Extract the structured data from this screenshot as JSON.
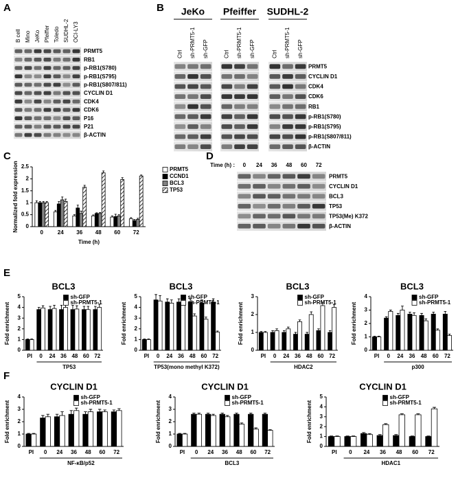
{
  "panel_labels": [
    "A",
    "B",
    "C",
    "D",
    "E",
    "F"
  ],
  "blots": {
    "A": {
      "lanes": [
        "B cell",
        "Mino",
        "JeKo",
        "Pfeiffer",
        "Toledo",
        "SUDHL-2",
        "OCI-LY3"
      ],
      "rows": [
        "PRMT5",
        "RB1",
        "p-RB1(S780)",
        "p-RB1(S795)",
        "p-RB1(S807/811)",
        "CYCLIN D1",
        "CDK4",
        "CDK6",
        "P16",
        "P21",
        "β-ACTIN"
      ]
    },
    "B": {
      "groups": [
        {
          "name": "JeKo",
          "lanes": [
            "Ctrl",
            "sh-PRMT5-1",
            "sh-GFP"
          ]
        },
        {
          "name": "Pfeiffer",
          "lanes": [
            "Ctrl",
            "sh-PRMT5-1",
            "sh-GFP"
          ]
        },
        {
          "name": "SUDHL-2",
          "lanes": [
            "Ctrl",
            "sh-PRMT5-1",
            "sh-GFP"
          ]
        }
      ],
      "rows": [
        "PRMT5",
        "CYCLIN D1",
        "CDK4",
        "CDK6",
        "RB1",
        "p-RB1(S780)",
        "p-RB1(S795)",
        "p-RB1(S807/811)",
        "β-ACTIN"
      ]
    },
    "D": {
      "time_label": "Time (h) :",
      "lanes": [
        "0",
        "24",
        "36",
        "48",
        "60",
        "72"
      ],
      "rows": [
        "PRMT5",
        "CYCLIN D1",
        "BCL3",
        "TP53",
        "TP53(Me) K372",
        "β-ACTIN"
      ]
    }
  },
  "chart_data": [
    {
      "type": "bar",
      "ylabel": "Normalized fold expression",
      "xlabel": "Time (h)",
      "legend": "right",
      "categories": [
        "0",
        "24",
        "36",
        "48",
        "60",
        "72"
      ],
      "ylim": [
        0,
        2.5
      ],
      "yticks": [
        0,
        0.5,
        1,
        1.5,
        2,
        2.5
      ],
      "series": [
        {
          "name": "PRMT5",
          "color": "#ffffff",
          "values": [
            1.0,
            0.62,
            0.45,
            0.45,
            0.4,
            0.33
          ],
          "errors": [
            0.08,
            0.06,
            0.05,
            0.04,
            0.05,
            0.05
          ]
        },
        {
          "name": "CCND1",
          "color": "#000000",
          "values": [
            1.0,
            0.95,
            0.78,
            0.55,
            0.42,
            0.25
          ],
          "errors": [
            0.05,
            0.1,
            0.12,
            0.03,
            0.1,
            0.05
          ]
        },
        {
          "name": "BCL3",
          "color": "#808080",
          "values": [
            1.0,
            1.12,
            0.55,
            0.55,
            0.45,
            0.3
          ],
          "errors": [
            0.05,
            0.12,
            0.1,
            0.04,
            0.05,
            0.05
          ]
        },
        {
          "name": "TP53",
          "color": "#ffffff",
          "pattern": "hatch",
          "values": [
            1.0,
            1.05,
            1.65,
            2.25,
            1.97,
            2.12
          ],
          "errors": [
            0.05,
            0.1,
            0.08,
            0.08,
            0.08,
            0.04
          ]
        }
      ]
    },
    {
      "type": "bar",
      "title": "BCL3",
      "ylabel": "Fold enrichment",
      "xlabel": "TP53",
      "legend": "top-right",
      "categories": [
        "PI",
        "0",
        "24",
        "36",
        "48",
        "60",
        "72"
      ],
      "ylim": [
        0,
        5
      ],
      "yticks": [
        0,
        1,
        2,
        3,
        4,
        5
      ],
      "series": [
        {
          "name": "sh-GFP",
          "color": "#000000",
          "values": [
            1.0,
            3.8,
            3.8,
            3.8,
            3.8,
            3.8,
            3.8
          ],
          "errors": [
            0.05,
            0.2,
            0.3,
            0.4,
            0.4,
            0.3,
            0.3
          ]
        },
        {
          "name": "sh-PRMT5-1",
          "color": "#ffffff",
          "values": [
            1.0,
            3.95,
            3.9,
            4.0,
            3.85,
            3.8,
            4.0
          ],
          "errors": [
            0.05,
            0.2,
            0.3,
            0.4,
            0.3,
            0.3,
            0.3
          ]
        }
      ]
    },
    {
      "type": "bar",
      "title": "BCL3",
      "ylabel": "Fold enrichment",
      "xlabel": "TP53(mono methyl K372)",
      "legend": "top-right",
      "categories": [
        "PI",
        "0",
        "24",
        "36",
        "48",
        "60",
        "72"
      ],
      "ylim": [
        0,
        5
      ],
      "yticks": [
        0,
        1,
        2,
        3,
        4,
        5
      ],
      "series": [
        {
          "name": "sh-GFP",
          "color": "#000000",
          "values": [
            1.0,
            4.7,
            4.5,
            4.5,
            4.5,
            4.4,
            4.5
          ],
          "errors": [
            0.05,
            0.5,
            0.3,
            0.3,
            0.3,
            0.3,
            0.3
          ]
        },
        {
          "name": "sh-PRMT5-1",
          "color": "#ffffff",
          "values": [
            1.0,
            4.6,
            4.4,
            4.2,
            3.2,
            2.9,
            1.7
          ],
          "errors": [
            0.05,
            0.5,
            0.3,
            0.3,
            0.2,
            0.2,
            0.1
          ]
        }
      ]
    },
    {
      "type": "bar",
      "title": "BCL3",
      "ylabel": "Fold enrichment",
      "xlabel": "HDAC2",
      "legend": "top-right",
      "categories": [
        "PI",
        "0",
        "24",
        "36",
        "48",
        "60",
        "72"
      ],
      "ylim": [
        0,
        3
      ],
      "yticks": [
        0,
        1,
        2,
        3
      ],
      "series": [
        {
          "name": "sh-GFP",
          "color": "#000000",
          "values": [
            1.0,
            1.0,
            1.0,
            0.9,
            0.9,
            1.1,
            1.0
          ],
          "errors": [
            0.05,
            0.1,
            0.1,
            0.1,
            0.1,
            0.1,
            0.1
          ]
        },
        {
          "name": "sh-PRMT5-1",
          "color": "#ffffff",
          "values": [
            1.0,
            1.1,
            1.2,
            1.6,
            2.0,
            2.5,
            2.4
          ],
          "errors": [
            0.05,
            0.1,
            0.1,
            0.1,
            0.15,
            0.15,
            0.15
          ]
        }
      ]
    },
    {
      "type": "bar",
      "title": "BCL3",
      "ylabel": "Fold enrichment",
      "xlabel": "p300",
      "legend": "top-right",
      "categories": [
        "PI",
        "0",
        "24",
        "36",
        "48",
        "60",
        "72"
      ],
      "ylim": [
        0,
        4
      ],
      "yticks": [
        0,
        1,
        2,
        3,
        4
      ],
      "series": [
        {
          "name": "sh-GFP",
          "color": "#000000",
          "values": [
            1.0,
            2.4,
            2.6,
            2.7,
            2.6,
            2.7,
            2.7
          ],
          "errors": [
            0.05,
            0.1,
            0.15,
            0.15,
            0.15,
            0.15,
            0.2
          ]
        },
        {
          "name": "sh-PRMT5-1",
          "color": "#ffffff",
          "values": [
            1.0,
            2.9,
            3.0,
            2.6,
            2.2,
            1.5,
            1.1
          ],
          "errors": [
            0.05,
            0.1,
            0.3,
            0.2,
            0.15,
            0.1,
            0.1
          ]
        }
      ]
    },
    {
      "type": "bar",
      "title": "CYCLIN D1",
      "ylabel": "Fold enrichment",
      "xlabel": "NF-κB/p52",
      "legend": "top-right",
      "categories": [
        "PI",
        "0",
        "24",
        "36",
        "48",
        "60",
        "72"
      ],
      "ylim": [
        0,
        4
      ],
      "yticks": [
        0,
        1,
        2,
        3,
        4
      ],
      "series": [
        {
          "name": "sh-GFP",
          "color": "#000000",
          "values": [
            1.0,
            2.3,
            2.4,
            2.6,
            2.6,
            2.8,
            2.8
          ],
          "errors": [
            0.05,
            0.2,
            0.2,
            0.3,
            0.2,
            0.2,
            0.15
          ]
        },
        {
          "name": "sh-PRMT5-1",
          "color": "#ffffff",
          "values": [
            1.0,
            2.4,
            2.5,
            2.9,
            2.8,
            2.8,
            2.9
          ],
          "errors": [
            0.05,
            0.2,
            0.3,
            0.2,
            0.2,
            0.15,
            0.15
          ]
        }
      ]
    },
    {
      "type": "bar",
      "title": "CYCLIN D1",
      "ylabel": "Fold enrichment",
      "xlabel": "BCL3",
      "legend": "top-right",
      "categories": [
        "PI",
        "0",
        "24",
        "36",
        "48",
        "60",
        "72"
      ],
      "ylim": [
        0,
        4
      ],
      "yticks": [
        0,
        1,
        2,
        3,
        4
      ],
      "series": [
        {
          "name": "sh-GFP",
          "color": "#000000",
          "values": [
            1.0,
            2.6,
            2.6,
            2.6,
            2.6,
            2.6,
            2.6
          ],
          "errors": [
            0.05,
            0.1,
            0.1,
            0.1,
            0.1,
            0.1,
            0.1
          ]
        },
        {
          "name": "sh-PRMT5-1",
          "color": "#ffffff",
          "values": [
            1.0,
            2.6,
            2.5,
            2.4,
            1.8,
            1.4,
            1.3
          ],
          "errors": [
            0.05,
            0.1,
            0.1,
            0.1,
            0.1,
            0.1,
            0.05
          ]
        }
      ]
    },
    {
      "type": "bar",
      "title": "CYCLIN D1",
      "ylabel": "Fold enrichment",
      "xlabel": "HDAC1",
      "legend": "top-right",
      "categories": [
        "PI",
        "0",
        "24",
        "36",
        "48",
        "60",
        "72"
      ],
      "ylim": [
        0,
        5
      ],
      "yticks": [
        0,
        1,
        2,
        3,
        4,
        5
      ],
      "series": [
        {
          "name": "sh-GFP",
          "color": "#000000",
          "values": [
            1.0,
            1.0,
            1.3,
            1.1,
            1.1,
            1.0,
            1.0
          ],
          "errors": [
            0.05,
            0.05,
            0.1,
            0.1,
            0.1,
            0.05,
            0.05
          ]
        },
        {
          "name": "sh-PRMT5-1",
          "color": "#ffffff",
          "values": [
            1.0,
            1.0,
            1.2,
            2.2,
            3.2,
            3.2,
            3.8
          ],
          "errors": [
            0.05,
            0.05,
            0.1,
            0.1,
            0.1,
            0.1,
            0.15
          ]
        }
      ]
    }
  ]
}
